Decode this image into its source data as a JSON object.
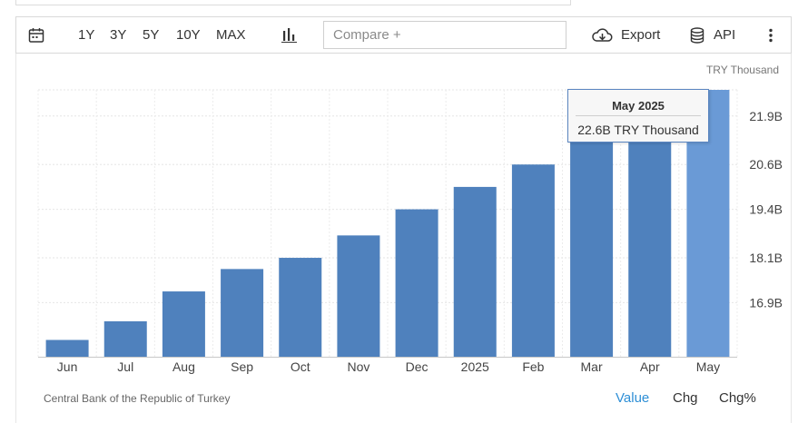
{
  "toolbar": {
    "ranges": [
      "1Y",
      "3Y",
      "5Y",
      "10Y",
      "MAX"
    ],
    "compare_placeholder": "Compare +",
    "export_label": "Export",
    "api_label": "API",
    "icons": {
      "calendar": "calendar-icon",
      "chart_type": "bar-chart-icon",
      "export": "cloud-download-icon",
      "api": "database-icon",
      "more": "more-vertical-icon"
    }
  },
  "unit_label": "TRY Thousand",
  "tooltip": {
    "title": "May 2025",
    "value": "22.6B TRY Thousand"
  },
  "footer": {
    "source": "Central Bank of the Republic of Turkey",
    "modes": [
      "Value",
      "Chg",
      "Chg%"
    ],
    "active_mode": "Value"
  },
  "colors": {
    "bar": "#4f81bd",
    "bar_highlight": "#6a9ad6",
    "active_link": "#2e8fd6"
  },
  "chart_data": {
    "type": "bar",
    "categories": [
      "Jun",
      "Jul",
      "Aug",
      "Sep",
      "Oct",
      "Nov",
      "Dec",
      "2025",
      "Feb",
      "Mar",
      "Apr",
      "May"
    ],
    "values": [
      15.9,
      16.4,
      17.2,
      17.8,
      18.1,
      18.7,
      19.4,
      20.0,
      20.6,
      21.5,
      21.9,
      22.6
    ],
    "y_tick_values": [
      16.9,
      18.1,
      19.4,
      20.6,
      21.9
    ],
    "y_tick_labels": [
      "16.9B",
      "18.1B",
      "19.4B",
      "20.6B",
      "21.9B"
    ],
    "ylim": [
      15.45,
      22.6
    ],
    "y_axis_position": "right",
    "grid": true,
    "highlighted_index": 11
  }
}
